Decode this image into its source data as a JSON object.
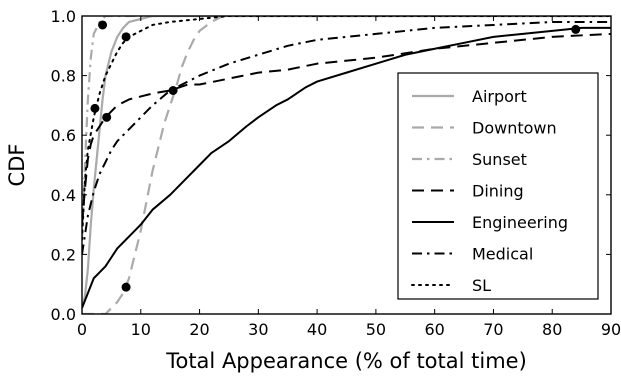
{
  "chart_data": {
    "type": "line",
    "xlabel": "Total Appearance (% of total time)",
    "ylabel": "CDF",
    "xlim": [
      0,
      90
    ],
    "ylim": [
      0,
      1
    ],
    "x_ticks": [
      "0",
      "10",
      "20",
      "30",
      "40",
      "50",
      "60",
      "70",
      "80",
      "90"
    ],
    "y_ticks": [
      "0.0",
      "0.2",
      "0.4",
      "0.6",
      "0.8",
      "1.0"
    ],
    "grid": false,
    "legend_position": "bottom-right",
    "series": [
      {
        "name": "Airport",
        "color": "#aaaaaa",
        "dash": "solid",
        "width": 2.2,
        "points": [
          [
            0,
            0.02
          ],
          [
            0.5,
            0.06
          ],
          [
            1,
            0.15
          ],
          [
            1.5,
            0.3
          ],
          [
            2,
            0.42
          ],
          [
            2.5,
            0.52
          ],
          [
            3,
            0.62
          ],
          [
            3.5,
            0.72
          ],
          [
            4,
            0.8
          ],
          [
            5,
            0.88
          ],
          [
            6,
            0.93
          ],
          [
            7,
            0.96
          ],
          [
            8,
            0.98
          ],
          [
            10,
            0.99
          ],
          [
            12,
            1.0
          ],
          [
            90,
            1.0
          ]
        ]
      },
      {
        "name": "Downtown",
        "color": "#aaaaaa",
        "dash": "long-dash",
        "width": 2.2,
        "points": [
          [
            0,
            0.0
          ],
          [
            4,
            0.0
          ],
          [
            5,
            0.02
          ],
          [
            6,
            0.04
          ],
          [
            7,
            0.07
          ],
          [
            8,
            0.12
          ],
          [
            9,
            0.2
          ],
          [
            10,
            0.28
          ],
          [
            11,
            0.38
          ],
          [
            12,
            0.48
          ],
          [
            13,
            0.56
          ],
          [
            14,
            0.64
          ],
          [
            15,
            0.7
          ],
          [
            16,
            0.76
          ],
          [
            17,
            0.83
          ],
          [
            18,
            0.88
          ],
          [
            19,
            0.92
          ],
          [
            20,
            0.95
          ],
          [
            22,
            0.98
          ],
          [
            24,
            1.0
          ],
          [
            90,
            1.0
          ]
        ]
      },
      {
        "name": "Sunset",
        "color": "#aaaaaa",
        "dash": "dash-dot",
        "width": 2.2,
        "points": [
          [
            0,
            0.25
          ],
          [
            0.5,
            0.5
          ],
          [
            1,
            0.72
          ],
          [
            1.5,
            0.86
          ],
          [
            2,
            0.94
          ],
          [
            3,
            0.98
          ],
          [
            4,
            1.0
          ],
          [
            90,
            1.0
          ]
        ]
      },
      {
        "name": "Dining",
        "color": "#000000",
        "dash": "long-dash",
        "width": 2.0,
        "points": [
          [
            0,
            0.3
          ],
          [
            0.5,
            0.42
          ],
          [
            1,
            0.52
          ],
          [
            1.5,
            0.57
          ],
          [
            2,
            0.6
          ],
          [
            3,
            0.63
          ],
          [
            4,
            0.66
          ],
          [
            5,
            0.68
          ],
          [
            6,
            0.7
          ],
          [
            8,
            0.72
          ],
          [
            10,
            0.73
          ],
          [
            12,
            0.74
          ],
          [
            15,
            0.75
          ],
          [
            18,
            0.77
          ],
          [
            20,
            0.77
          ],
          [
            25,
            0.79
          ],
          [
            30,
            0.81
          ],
          [
            35,
            0.82
          ],
          [
            40,
            0.84
          ],
          [
            50,
            0.86
          ],
          [
            60,
            0.89
          ],
          [
            70,
            0.91
          ],
          [
            80,
            0.93
          ],
          [
            90,
            0.94
          ]
        ]
      },
      {
        "name": "Engineering",
        "color": "#000000",
        "dash": "solid",
        "width": 2.0,
        "points": [
          [
            0,
            0.02
          ],
          [
            1,
            0.07
          ],
          [
            2,
            0.12
          ],
          [
            3,
            0.14
          ],
          [
            4,
            0.16
          ],
          [
            5,
            0.19
          ],
          [
            6,
            0.22
          ],
          [
            8,
            0.26
          ],
          [
            10,
            0.3
          ],
          [
            12,
            0.35
          ],
          [
            15,
            0.4
          ],
          [
            18,
            0.46
          ],
          [
            20,
            0.5
          ],
          [
            22,
            0.54
          ],
          [
            25,
            0.58
          ],
          [
            28,
            0.63
          ],
          [
            30,
            0.66
          ],
          [
            33,
            0.7
          ],
          [
            35,
            0.72
          ],
          [
            38,
            0.76
          ],
          [
            40,
            0.78
          ],
          [
            45,
            0.81
          ],
          [
            50,
            0.84
          ],
          [
            55,
            0.87
          ],
          [
            60,
            0.89
          ],
          [
            65,
            0.91
          ],
          [
            70,
            0.93
          ],
          [
            75,
            0.94
          ],
          [
            80,
            0.95
          ],
          [
            85,
            0.96
          ],
          [
            90,
            0.96
          ]
        ]
      },
      {
        "name": "Medical",
        "color": "#000000",
        "dash": "dash-dot",
        "width": 2.0,
        "points": [
          [
            0,
            0.2
          ],
          [
            1,
            0.33
          ],
          [
            2,
            0.41
          ],
          [
            3,
            0.47
          ],
          [
            4,
            0.51
          ],
          [
            5,
            0.55
          ],
          [
            6,
            0.58
          ],
          [
            8,
            0.62
          ],
          [
            10,
            0.66
          ],
          [
            12,
            0.7
          ],
          [
            15,
            0.75
          ],
          [
            18,
            0.78
          ],
          [
            20,
            0.8
          ],
          [
            25,
            0.84
          ],
          [
            30,
            0.87
          ],
          [
            35,
            0.9
          ],
          [
            40,
            0.92
          ],
          [
            50,
            0.94
          ],
          [
            60,
            0.96
          ],
          [
            70,
            0.97
          ],
          [
            80,
            0.98
          ],
          [
            90,
            0.98
          ]
        ]
      },
      {
        "name": "SL",
        "color": "#000000",
        "dash": "dotted",
        "width": 2.0,
        "points": [
          [
            0,
            0.25
          ],
          [
            0.5,
            0.45
          ],
          [
            1,
            0.55
          ],
          [
            2,
            0.66
          ],
          [
            3,
            0.74
          ],
          [
            4,
            0.8
          ],
          [
            5,
            0.84
          ],
          [
            6,
            0.88
          ],
          [
            7,
            0.91
          ],
          [
            8,
            0.93
          ],
          [
            10,
            0.95
          ],
          [
            12,
            0.97
          ],
          [
            15,
            0.98
          ],
          [
            20,
            0.99
          ],
          [
            25,
            1.0
          ],
          [
            90,
            1.0
          ]
        ]
      }
    ],
    "markers": [
      {
        "x": 3.5,
        "y": 0.97
      },
      {
        "x": 7.5,
        "y": 0.93
      },
      {
        "x": 2.2,
        "y": 0.69
      },
      {
        "x": 4.2,
        "y": 0.66
      },
      {
        "x": 15.5,
        "y": 0.75
      },
      {
        "x": 7.5,
        "y": 0.09
      },
      {
        "x": 84,
        "y": 0.955
      }
    ]
  }
}
